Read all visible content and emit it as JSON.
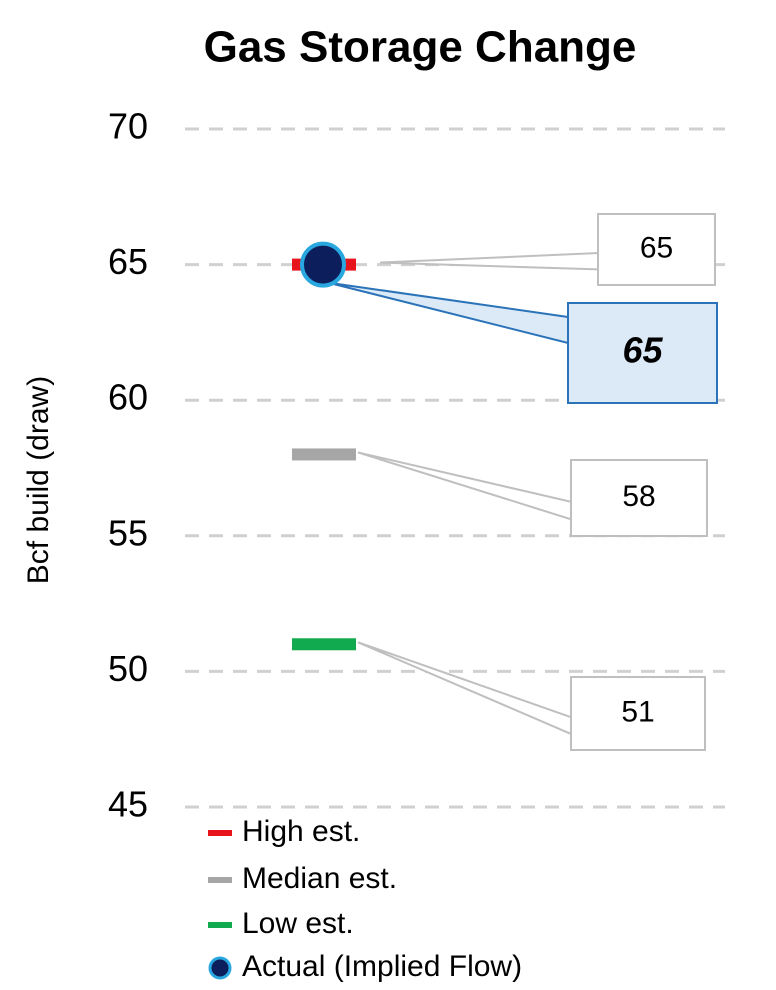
{
  "chart_data": {
    "type": "dot",
    "title": "Gas Storage Change",
    "ylabel": "Bcf build (draw)",
    "ylim": [
      45,
      70
    ],
    "yticks": [
      45,
      50,
      55,
      60,
      65,
      70
    ],
    "grid": true,
    "legend": "lower left",
    "series": [
      {
        "name": "High est.",
        "color": "#e8141c",
        "marker": "dash",
        "values": [
          65
        ]
      },
      {
        "name": "Median est.",
        "color": "#a6a6a6",
        "marker": "dash",
        "values": [
          58
        ]
      },
      {
        "name": "Low est.",
        "color": "#11aa4e",
        "marker": "dash",
        "values": [
          51
        ]
      },
      {
        "name": "Actual (Implied Flow)",
        "color": "#0c1f5c",
        "edgecolor": "#29a8e0",
        "marker": "circle",
        "values": [
          65
        ]
      }
    ]
  }
}
